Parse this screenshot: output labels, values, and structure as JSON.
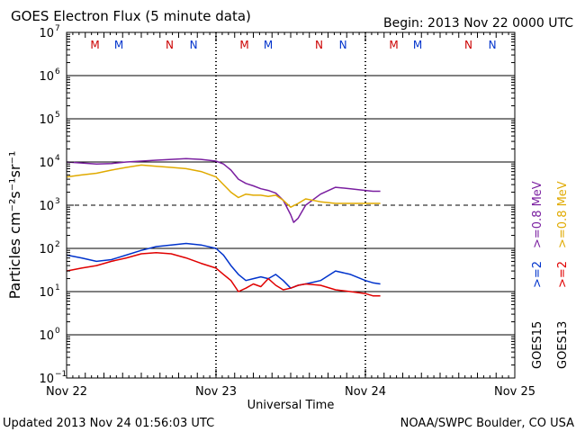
{
  "header": {
    "title": "GOES Electron Flux (5 minute data)",
    "begin": "Begin: 2013 Nov 22 0000 UTC"
  },
  "footer": {
    "updated": "Updated 2013 Nov 24 01:56:03 UTC",
    "credit": "NOAA/SWPC Boulder, CO USA"
  },
  "chart_data": {
    "type": "line",
    "title": "GOES Electron Flux (5 minute data)",
    "xlabel": "Universal Time",
    "ylabel": "Particles cm⁻²s⁻¹sr⁻¹",
    "x_unit": "days since 2013 Nov 22 0000 UTC",
    "xlim": [
      0,
      3
    ],
    "x_ticks": [
      {
        "x": 0,
        "label": "Nov 22"
      },
      {
        "x": 1,
        "label": "Nov 23"
      },
      {
        "x": 2,
        "label": "Nov 24"
      },
      {
        "x": 3,
        "label": "Nov 25"
      }
    ],
    "y_scale": "log",
    "ylim_exp": [
      -1,
      7
    ],
    "y_ticks": [
      {
        "exp": 7,
        "label": "10",
        "sup": "7"
      },
      {
        "exp": 6,
        "label": "10",
        "sup": "6"
      },
      {
        "exp": 5,
        "label": "10",
        "sup": "5"
      },
      {
        "exp": 4,
        "label": "10",
        "sup": "4"
      },
      {
        "exp": 3,
        "label": "10",
        "sup": "3"
      },
      {
        "exp": 2,
        "label": "10",
        "sup": "2"
      },
      {
        "exp": 1,
        "label": "10",
        "sup": "1"
      },
      {
        "exp": 0,
        "label": "10",
        "sup": "0"
      },
      {
        "exp": -1,
        "label": "10",
        "sup": "−1"
      }
    ],
    "solid_gridlines_exp": [
      6,
      5,
      4,
      2,
      1,
      0
    ],
    "dashed_gridlines_exp": [
      3
    ],
    "markers": [
      {
        "x": 0.19,
        "label": "M",
        "color": "#cc0000"
      },
      {
        "x": 0.35,
        "label": "M",
        "color": "#0033cc"
      },
      {
        "x": 0.69,
        "label": "N",
        "color": "#cc0000"
      },
      {
        "x": 0.85,
        "label": "N",
        "color": "#0033cc"
      },
      {
        "x": 1.19,
        "label": "M",
        "color": "#cc0000"
      },
      {
        "x": 1.35,
        "label": "M",
        "color": "#0033cc"
      },
      {
        "x": 1.69,
        "label": "N",
        "color": "#cc0000"
      },
      {
        "x": 1.85,
        "label": "N",
        "color": "#0033cc"
      },
      {
        "x": 2.19,
        "label": "M",
        "color": "#cc0000"
      },
      {
        "x": 2.35,
        "label": "M",
        "color": "#0033cc"
      },
      {
        "x": 2.69,
        "label": "N",
        "color": "#cc0000"
      },
      {
        "x": 2.85,
        "label": "N",
        "color": "#0033cc"
      }
    ],
    "legend": [
      {
        "label": ">=0.8 MeV",
        "color": "#e0aa00"
      },
      {
        "label": ">=0.8 MeV",
        "color": "#7a1fa0"
      },
      {
        "label": ">=2",
        "color": "#e00000"
      },
      {
        "label": ">=2",
        "color": "#0033cc"
      },
      {
        "label": "GOES13",
        "color": "#000000"
      },
      {
        "label": "GOES15",
        "color": "#000000"
      }
    ],
    "series": [
      {
        "name": "GOES15 >=0.8 MeV",
        "color": "#7a1fa0",
        "x": [
          0,
          0.1,
          0.2,
          0.3,
          0.4,
          0.5,
          0.6,
          0.7,
          0.8,
          0.9,
          1.0,
          1.05,
          1.1,
          1.15,
          1.2,
          1.25,
          1.3,
          1.35,
          1.4,
          1.45,
          1.5,
          1.52,
          1.55,
          1.6,
          1.7,
          1.8,
          1.9,
          2.0,
          2.05,
          2.1
        ],
        "y": [
          10000,
          9500,
          9000,
          9200,
          10000,
          10500,
          11000,
          11500,
          12000,
          11500,
          10500,
          9000,
          6500,
          4000,
          3200,
          2800,
          2400,
          2200,
          1900,
          1300,
          600,
          400,
          500,
          1000,
          1800,
          2600,
          2400,
          2200,
          2100,
          2100
        ]
      },
      {
        "name": "GOES13 >=0.8 MeV",
        "color": "#e0aa00",
        "x": [
          0,
          0.1,
          0.2,
          0.3,
          0.4,
          0.5,
          0.6,
          0.7,
          0.8,
          0.9,
          1.0,
          1.05,
          1.1,
          1.15,
          1.2,
          1.25,
          1.3,
          1.35,
          1.4,
          1.45,
          1.5,
          1.55,
          1.6,
          1.7,
          1.8,
          1.9,
          2.0,
          2.05,
          2.1
        ],
        "y": [
          4500,
          5000,
          5500,
          6500,
          7500,
          8500,
          8000,
          7500,
          7000,
          6000,
          4500,
          3000,
          2000,
          1500,
          1800,
          1700,
          1700,
          1600,
          1700,
          1300,
          900,
          1100,
          1400,
          1200,
          1100,
          1100,
          1100,
          1100,
          1100
        ]
      },
      {
        "name": "GOES15 >=2 MeV",
        "color": "#0033cc",
        "x": [
          0,
          0.1,
          0.2,
          0.3,
          0.4,
          0.5,
          0.6,
          0.7,
          0.8,
          0.9,
          1.0,
          1.05,
          1.1,
          1.15,
          1.2,
          1.25,
          1.3,
          1.35,
          1.4,
          1.45,
          1.5,
          1.55,
          1.6,
          1.7,
          1.8,
          1.9,
          2.0,
          2.05,
          2.1
        ],
        "y": [
          70,
          60,
          50,
          55,
          70,
          90,
          110,
          120,
          130,
          120,
          100,
          70,
          40,
          25,
          18,
          20,
          22,
          20,
          25,
          18,
          12,
          14,
          15,
          18,
          30,
          25,
          18,
          16,
          15
        ]
      },
      {
        "name": "GOES13 >=2 MeV",
        "color": "#e00000",
        "x": [
          0,
          0.1,
          0.2,
          0.3,
          0.4,
          0.5,
          0.6,
          0.7,
          0.8,
          0.9,
          1.0,
          1.05,
          1.1,
          1.15,
          1.2,
          1.25,
          1.3,
          1.35,
          1.4,
          1.45,
          1.5,
          1.55,
          1.6,
          1.7,
          1.8,
          1.9,
          2.0,
          2.05,
          2.1
        ],
        "y": [
          30,
          35,
          40,
          50,
          60,
          75,
          80,
          75,
          60,
          45,
          35,
          25,
          18,
          10,
          12,
          15,
          13,
          20,
          14,
          11,
          12,
          14,
          15,
          14,
          11,
          10,
          9,
          8,
          8
        ]
      }
    ]
  }
}
